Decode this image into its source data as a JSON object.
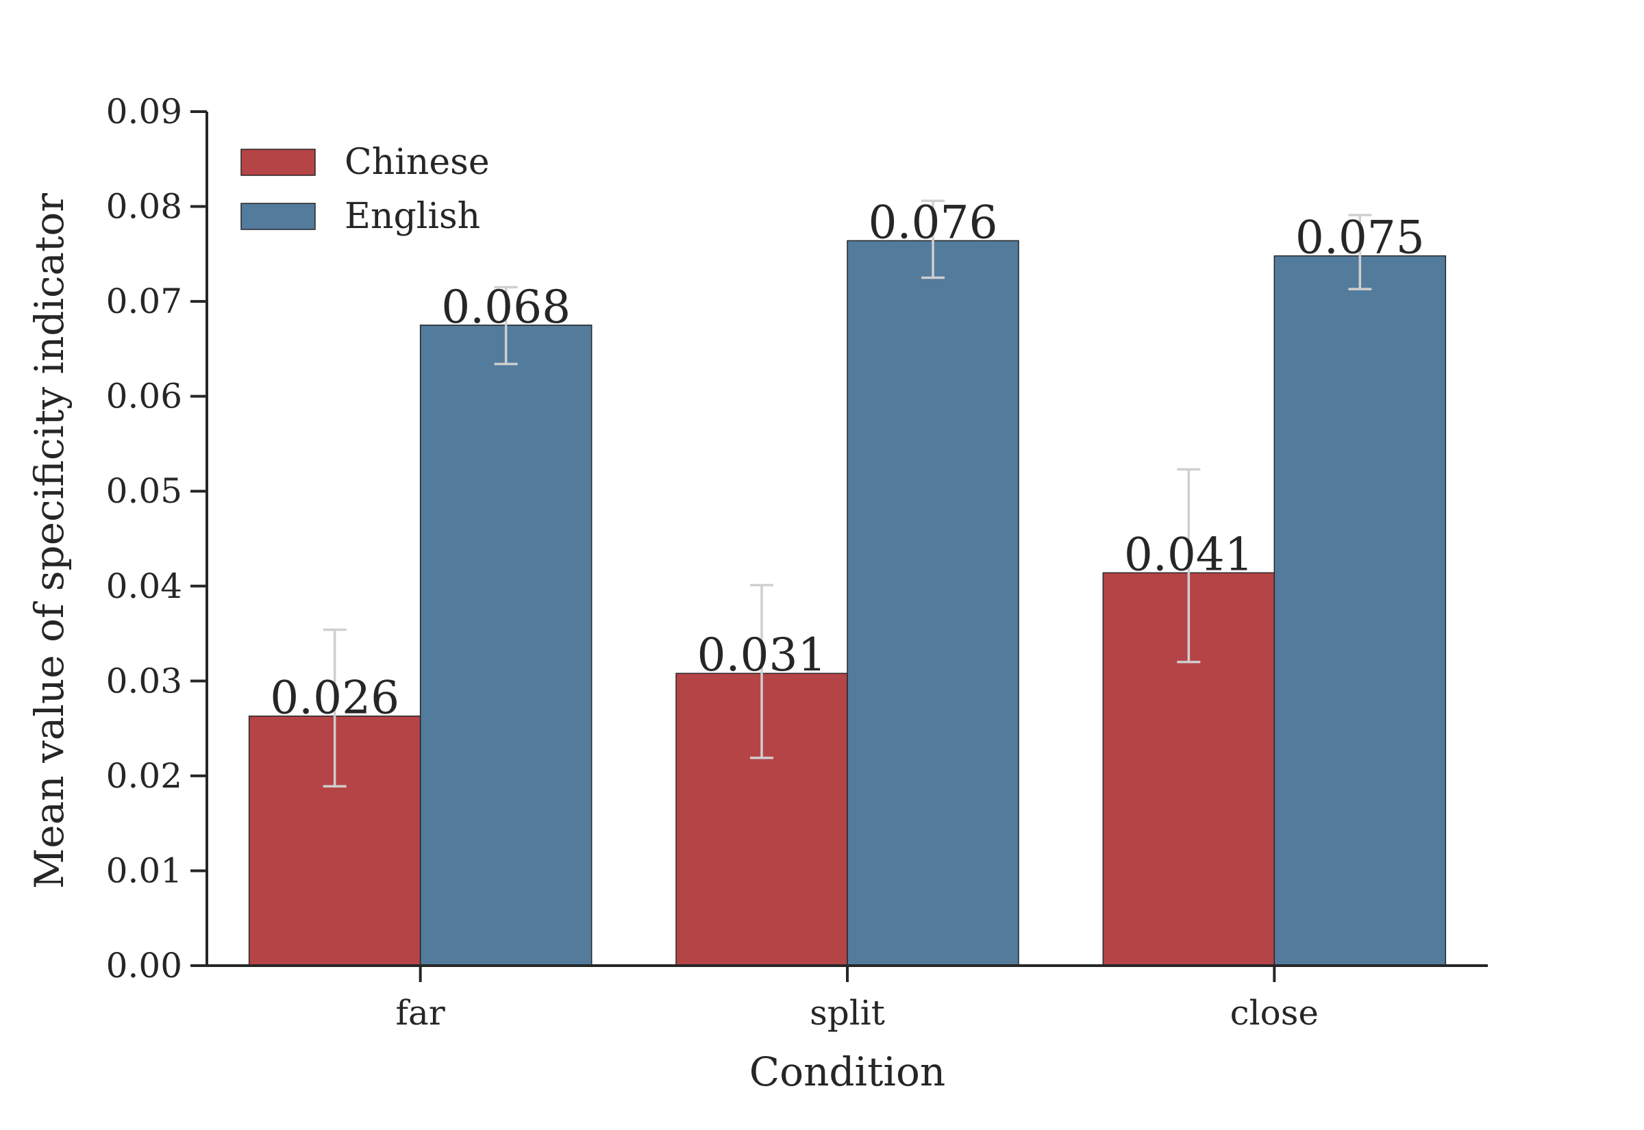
{
  "chart_data": {
    "type": "bar",
    "title": "",
    "xlabel": "Condition",
    "ylabel": "Mean value of specificity indicator",
    "categories": [
      "far",
      "split",
      "close"
    ],
    "ylim": [
      0,
      0.09
    ],
    "yticks": [
      "0.00",
      "0.01",
      "0.02",
      "0.03",
      "0.04",
      "0.05",
      "0.06",
      "0.07",
      "0.08",
      "0.09"
    ],
    "legend_position": "top-left",
    "grid": false,
    "error_bars": true,
    "series": [
      {
        "name": "Chinese",
        "color": "#b54446",
        "values": [
          0.0263,
          0.0308,
          0.0414
        ],
        "labels": [
          "0.026",
          "0.031",
          "0.041"
        ],
        "error_low": [
          0.0189,
          0.0219,
          0.032
        ],
        "error_high": [
          0.0354,
          0.0401,
          0.0523
        ]
      },
      {
        "name": "English",
        "color": "#537b9c",
        "values": [
          0.0675,
          0.0764,
          0.0748
        ],
        "labels": [
          "0.068",
          "0.076",
          "0.075"
        ],
        "error_low": [
          0.0634,
          0.0725,
          0.0713
        ],
        "error_high": [
          0.0715,
          0.0806,
          0.0791
        ]
      }
    ]
  }
}
